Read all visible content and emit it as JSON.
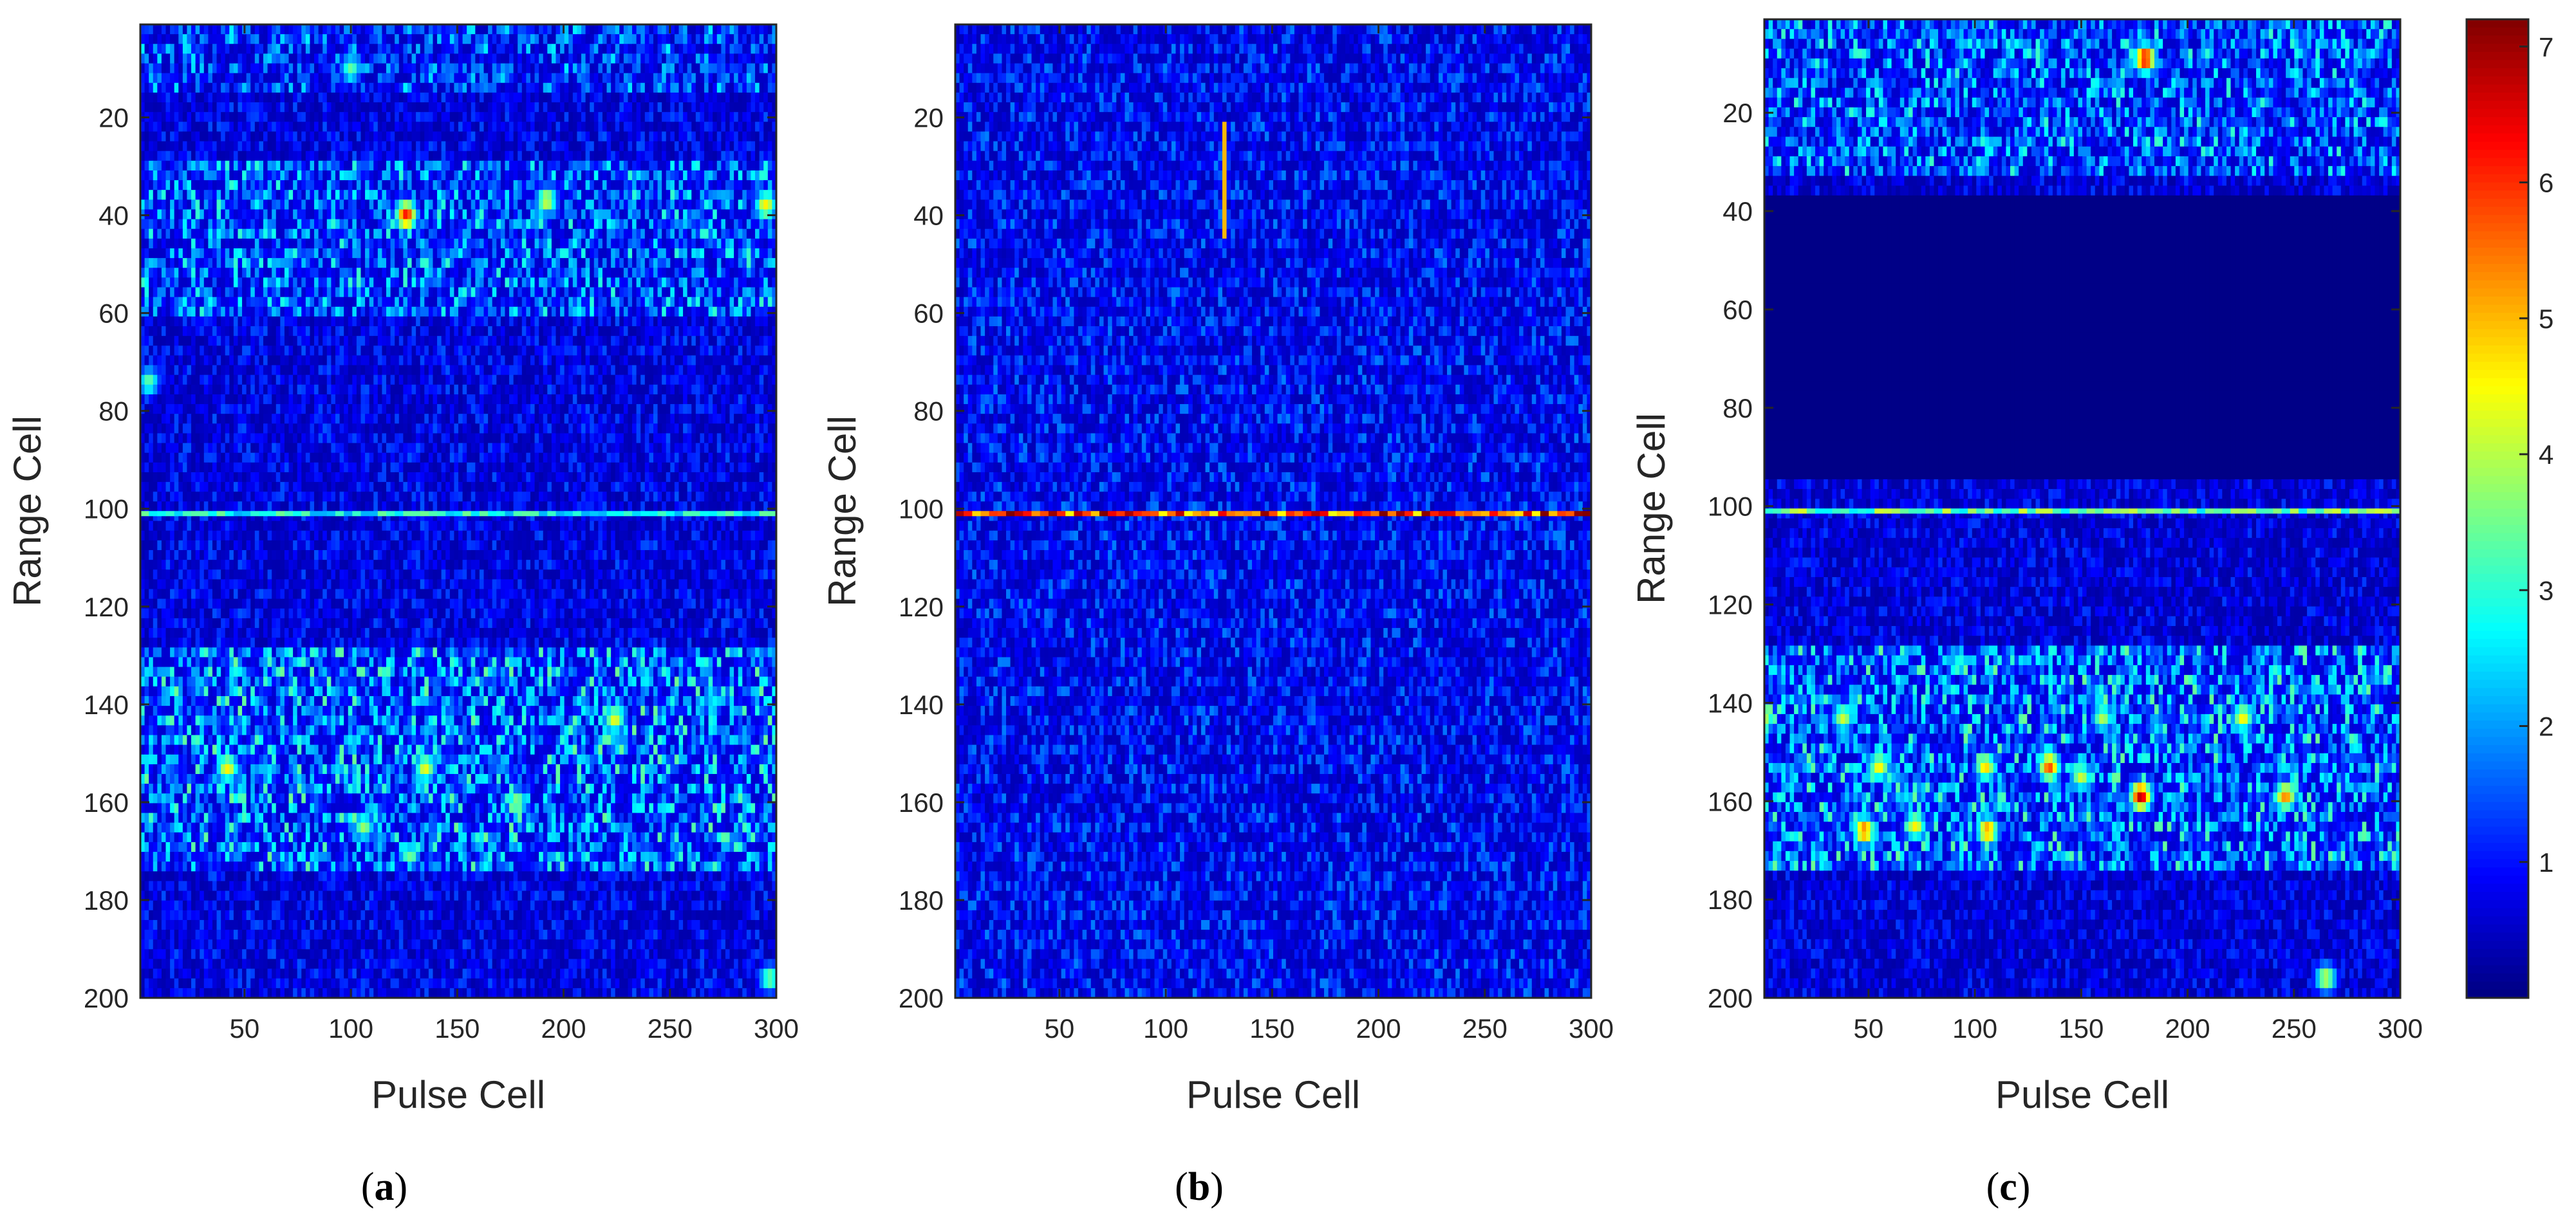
{
  "chart_data": [
    {
      "type": "heatmap",
      "panel": "a",
      "caption_open": "(",
      "caption_letter": "a",
      "caption_close": ")",
      "xlabel": "Pulse Cell",
      "ylabel": "Range Cell",
      "xlim": [
        1,
        300
      ],
      "ylim": [
        1,
        200
      ],
      "y_reversed": true,
      "xticks": [
        50,
        100,
        150,
        200,
        250,
        300
      ],
      "yticks": [
        20,
        40,
        60,
        80,
        100,
        120,
        140,
        160,
        180,
        200
      ],
      "colormap": "jet",
      "clim": [
        0,
        7.2
      ],
      "background_level": 0.9,
      "target_line": {
        "range_cell": 101,
        "level": 2.8
      },
      "clutter_bands": [
        {
          "from": 1,
          "to": 14,
          "level": 2.2
        },
        {
          "from": 28,
          "to": 60,
          "level": 2.6
        },
        {
          "from": 128,
          "to": 175,
          "level": 2.9
        }
      ],
      "blank_band": null,
      "hotspots": [
        {
          "pulse": 126,
          "range": 40,
          "level": 6.2
        },
        {
          "pulse": 192,
          "range": 37,
          "level": 4.3
        },
        {
          "pulse": 295,
          "range": 38,
          "level": 4.6
        },
        {
          "pulse": 42,
          "range": 153,
          "level": 4.6
        },
        {
          "pulse": 135,
          "range": 153,
          "level": 4.4
        },
        {
          "pulse": 224,
          "range": 143,
          "level": 4.4
        },
        {
          "pulse": 178,
          "range": 160,
          "level": 3.8
        },
        {
          "pulse": 106,
          "range": 165,
          "level": 3.8
        },
        {
          "pulse": 297,
          "range": 196,
          "level": 3.6
        },
        {
          "pulse": 5,
          "range": 74,
          "level": 3.4
        },
        {
          "pulse": 100,
          "range": 10,
          "level": 3.4
        }
      ]
    },
    {
      "type": "heatmap",
      "panel": "b",
      "caption_open": "(",
      "caption_letter": "b",
      "caption_close": ")",
      "xlabel": "Pulse Cell",
      "ylabel": "Range Cell",
      "xlim": [
        1,
        300
      ],
      "ylim": [
        1,
        200
      ],
      "y_reversed": true,
      "xticks": [
        50,
        100,
        150,
        200,
        250,
        300
      ],
      "yticks": [
        20,
        40,
        60,
        80,
        100,
        120,
        140,
        160,
        180,
        200
      ],
      "colormap": "jet",
      "clim": [
        0,
        7.2
      ],
      "background_level": 1.1,
      "target_line": {
        "range_cell": 101,
        "level": 5.8
      },
      "clutter_bands": [],
      "blank_band": null,
      "vertical_streak": {
        "pulse": 128,
        "from": 20,
        "to": 45,
        "level": 5.0
      },
      "hotspots": []
    },
    {
      "type": "heatmap",
      "panel": "c",
      "caption_open": "(",
      "caption_letter": "c",
      "caption_close": ")",
      "xlabel": "Pulse Cell",
      "ylabel": "Range Cell",
      "xlim": [
        1,
        300
      ],
      "ylim": [
        1,
        200
      ],
      "y_reversed": true,
      "xticks": [
        50,
        100,
        150,
        200,
        250,
        300
      ],
      "yticks": [
        20,
        40,
        60,
        80,
        100,
        120,
        140,
        160,
        180,
        200
      ],
      "colormap": "jet",
      "clim": [
        0,
        7.2
      ],
      "background_level": 0.8,
      "target_line": {
        "range_cell": 101,
        "level": 3.4
      },
      "clutter_bands": [
        {
          "from": 1,
          "to": 32,
          "level": 2.6
        },
        {
          "from": 128,
          "to": 175,
          "level": 2.9
        }
      ],
      "blank_band": {
        "from": 37,
        "to": 94,
        "level": 0.05
      },
      "hotspots": [
        {
          "pulse": 180,
          "range": 9,
          "level": 6.5
        },
        {
          "pulse": 178,
          "range": 159,
          "level": 6.8
        },
        {
          "pulse": 135,
          "range": 153,
          "level": 5.8
        },
        {
          "pulse": 48,
          "range": 166,
          "level": 5.6
        },
        {
          "pulse": 106,
          "range": 166,
          "level": 5.4
        },
        {
          "pulse": 246,
          "range": 159,
          "level": 5.4
        },
        {
          "pulse": 105,
          "range": 153,
          "level": 4.8
        },
        {
          "pulse": 226,
          "range": 143,
          "level": 4.6
        },
        {
          "pulse": 72,
          "range": 165,
          "level": 4.6
        },
        {
          "pulse": 55,
          "range": 153,
          "level": 4.6
        },
        {
          "pulse": 38,
          "range": 143,
          "level": 4.2
        },
        {
          "pulse": 265,
          "range": 196,
          "level": 4.2
        },
        {
          "pulse": 1,
          "range": 143,
          "level": 4.0
        },
        {
          "pulse": 150,
          "range": 155,
          "level": 4.2
        },
        {
          "pulse": 160,
          "range": 143,
          "level": 4.0
        }
      ]
    }
  ],
  "colorbar": {
    "colormap": "jet",
    "range": [
      0,
      7.2
    ],
    "ticks": [
      1,
      2,
      3,
      4,
      5,
      6,
      7
    ]
  }
}
